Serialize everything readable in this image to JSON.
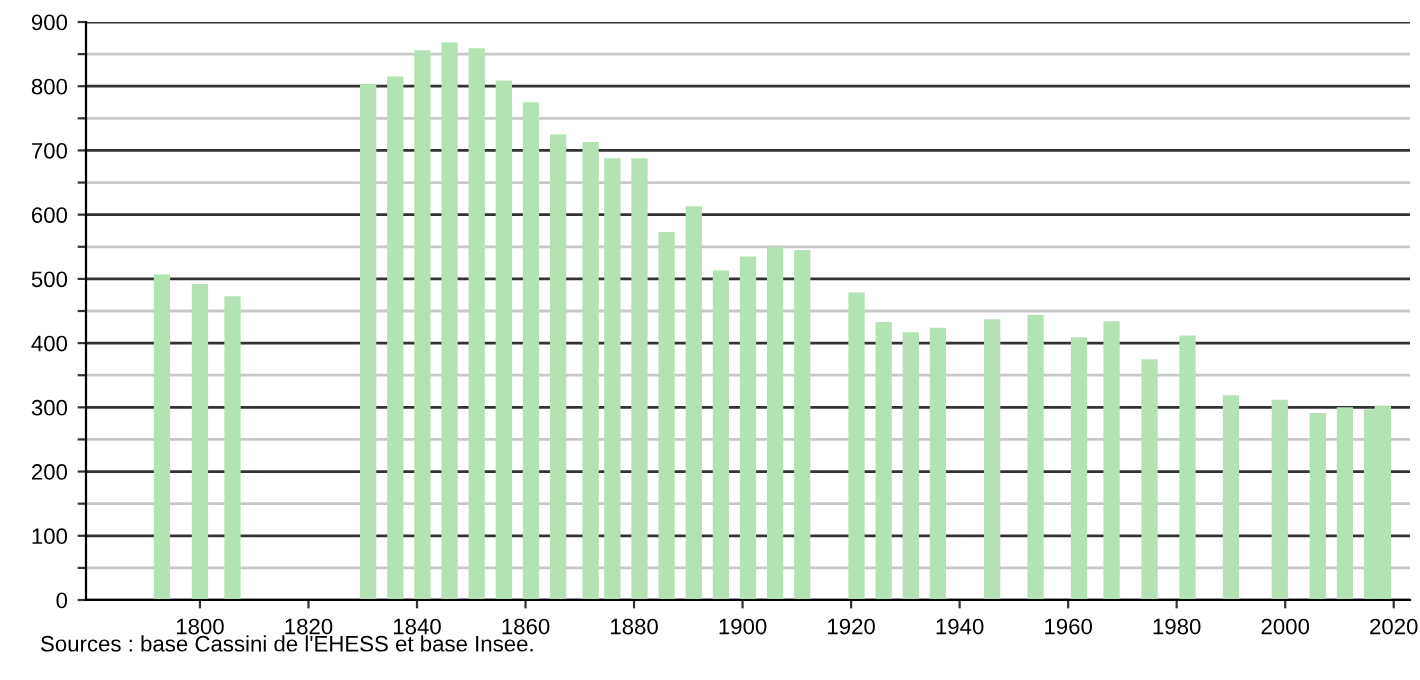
{
  "chart_data": {
    "type": "bar",
    "x": [
      1793,
      1800,
      1806,
      1831,
      1836,
      1841,
      1846,
      1851,
      1856,
      1861,
      1866,
      1872,
      1876,
      1881,
      1886,
      1891,
      1896,
      1901,
      1906,
      1911,
      1921,
      1926,
      1931,
      1936,
      1946,
      1954,
      1962,
      1968,
      1975,
      1982,
      1990,
      1999,
      2006,
      2011,
      2016,
      2018
    ],
    "values": [
      507,
      492,
      473,
      803,
      815,
      856,
      868,
      859,
      809,
      775,
      725,
      713,
      688,
      688,
      573,
      613,
      513,
      535,
      549,
      545,
      479,
      433,
      417,
      424,
      437,
      444,
      409,
      434,
      375,
      412,
      319,
      312,
      291,
      300,
      297,
      303
    ],
    "color": "#b3e3b3",
    "xlim": [
      1779,
      2023
    ],
    "xticks": [
      1800,
      1820,
      1840,
      1860,
      1880,
      1900,
      1920,
      1940,
      1960,
      1980,
      2000,
      2020
    ],
    "ylim": [
      0,
      900
    ],
    "yticks": [
      0,
      {
        "value": 50,
        "label": null
      },
      100,
      {
        "value": 150,
        "label": null
      },
      200,
      {
        "value": 250,
        "label": null
      },
      300,
      {
        "value": 350,
        "label": null
      },
      400,
      {
        "value": 450,
        "label": null
      },
      500,
      {
        "value": 550,
        "label": null
      },
      600,
      {
        "value": 650,
        "label": null
      },
      700,
      {
        "value": 750,
        "label": null
      },
      800,
      {
        "value": 850,
        "label": null
      },
      900
    ],
    "grid": "y",
    "annotations": [
      "Sources : base Cassini de l'EHESS et base Insee."
    ]
  }
}
